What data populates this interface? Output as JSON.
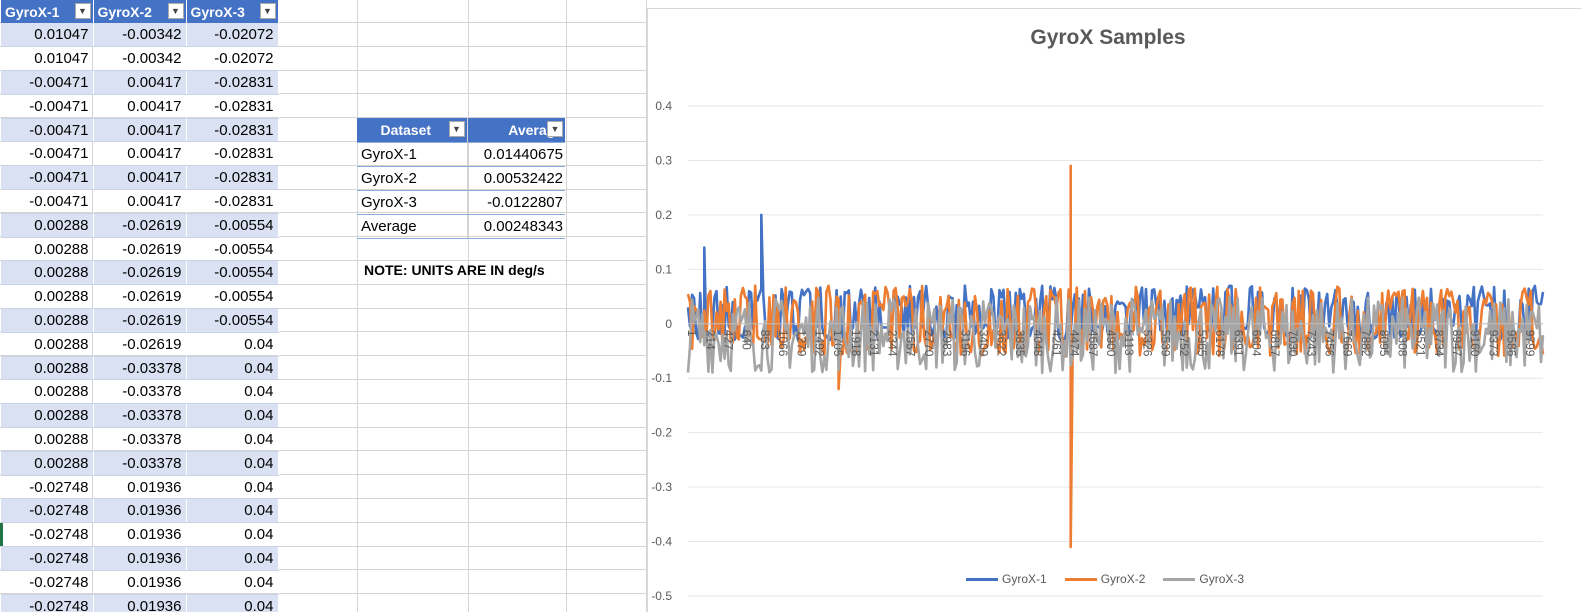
{
  "table": {
    "headers": [
      "GyroX-1",
      "GyroX-2",
      "GyroX-3"
    ],
    "rows": [
      [
        "0.01047",
        "-0.00342",
        "-0.02072"
      ],
      [
        "0.01047",
        "-0.00342",
        "-0.02072"
      ],
      [
        "-0.00471",
        "0.00417",
        "-0.02831"
      ],
      [
        "-0.00471",
        "0.00417",
        "-0.02831"
      ],
      [
        "-0.00471",
        "0.00417",
        "-0.02831"
      ],
      [
        "-0.00471",
        "0.00417",
        "-0.02831"
      ],
      [
        "-0.00471",
        "0.00417",
        "-0.02831"
      ],
      [
        "-0.00471",
        "0.00417",
        "-0.02831"
      ],
      [
        "0.00288",
        "-0.02619",
        "-0.00554"
      ],
      [
        "0.00288",
        "-0.02619",
        "-0.00554"
      ],
      [
        "0.00288",
        "-0.02619",
        "-0.00554"
      ],
      [
        "0.00288",
        "-0.02619",
        "-0.00554"
      ],
      [
        "0.00288",
        "-0.02619",
        "-0.00554"
      ],
      [
        "0.00288",
        "-0.02619",
        "0.04"
      ],
      [
        "0.00288",
        "-0.03378",
        "0.04"
      ],
      [
        "0.00288",
        "-0.03378",
        "0.04"
      ],
      [
        "0.00288",
        "-0.03378",
        "0.04"
      ],
      [
        "0.00288",
        "-0.03378",
        "0.04"
      ],
      [
        "0.00288",
        "-0.03378",
        "0.04"
      ],
      [
        "-0.02748",
        "0.01936",
        "0.04"
      ],
      [
        "-0.02748",
        "0.01936",
        "0.04"
      ],
      [
        "-0.02748",
        "0.01936",
        "0.04"
      ],
      [
        "-0.02748",
        "0.01936",
        "0.04"
      ],
      [
        "-0.02748",
        "0.01936",
        "0.04"
      ],
      [
        "-0.02748",
        "0.01936",
        "0.04"
      ]
    ]
  },
  "summary": {
    "headers": [
      "Dataset",
      "Average"
    ],
    "rows": [
      [
        "GyroX-1",
        "0.01440675"
      ],
      [
        "GyroX-2",
        "0.00532422"
      ],
      [
        "GyroX-3",
        "-0.0122807"
      ],
      [
        "Average",
        "0.00248343"
      ]
    ],
    "note": "NOTE: UNITS ARE IN deg/s"
  },
  "colors": {
    "series1": "#4472c4",
    "series2": "#ed7d31",
    "series3": "#a5a5a5",
    "table_header": "#4472c4",
    "band": "#d9e1f2"
  },
  "icons": {
    "filter": "dropdown-arrow-icon"
  },
  "chart_data": {
    "type": "line",
    "title": "GyroX Samples",
    "ylim": [
      -0.5,
      0.4
    ],
    "yticks": [
      "0.4",
      "0.3",
      "0.2",
      "0.1",
      "0",
      "-0.1",
      "-0.2",
      "-0.3",
      "-0.4",
      "-0.5"
    ],
    "xlabels": [
      "1",
      "214",
      "427",
      "640",
      "853",
      "1066",
      "1279",
      "1492",
      "1705",
      "1918",
      "2131",
      "2344",
      "2557",
      "2770",
      "2983",
      "3196",
      "3409",
      "3622",
      "3835",
      "4048",
      "4261",
      "4474",
      "4687",
      "4900",
      "5113",
      "5326",
      "5539",
      "5752",
      "5965",
      "6178",
      "6391",
      "6604",
      "6817",
      "7030",
      "7243",
      "7456",
      "7669",
      "7882",
      "8095",
      "8308",
      "8521",
      "8734",
      "8947",
      "9160",
      "9373",
      "9586",
      "9799"
    ],
    "x_count": 10000,
    "legend_position": "bottom",
    "series": [
      {
        "name": "GyroX-1",
        "color": "#4472c4",
        "typical_range": [
          -0.09,
          0.2
        ],
        "spikes": [
          {
            "x": 853,
            "y": 0.2
          },
          {
            "x": 200,
            "y": 0.14
          }
        ]
      },
      {
        "name": "GyroX-2",
        "color": "#ed7d31",
        "typical_range": [
          -0.12,
          0.1
        ],
        "spikes": [
          {
            "x": 4474,
            "y": 0.29
          },
          {
            "x": 4474,
            "y": -0.41
          },
          {
            "x": 1760,
            "y": -0.12
          }
        ]
      },
      {
        "name": "GyroX-3",
        "color": "#a5a5a5",
        "typical_range": [
          -0.1,
          0.05
        ],
        "spikes": []
      }
    ]
  }
}
